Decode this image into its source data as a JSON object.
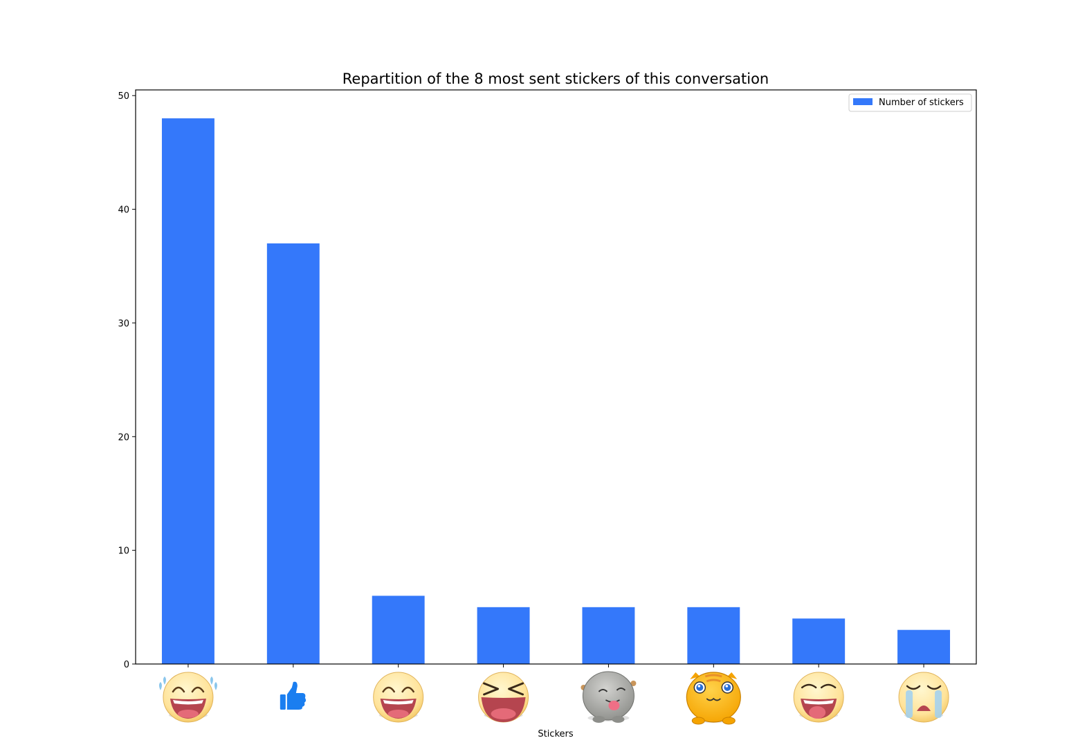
{
  "chart_data": {
    "type": "bar",
    "title": "Repartition of the 8 most sent stickers of this conversation",
    "xlabel": "Stickers",
    "ylabel": "",
    "ylim": [
      0,
      50.5
    ],
    "yticks": [
      "0",
      "10",
      "20",
      "30",
      "40",
      "50"
    ],
    "categories": [
      "laughing-tears-sticker",
      "thumbs-up-sticker",
      "grinning-face-sticker",
      "squinting-laugh-sticker",
      "gray-blob-tongue-sticker",
      "yellow-blob-sticker",
      "tongue-out-face-sticker",
      "crying-face-sticker"
    ],
    "series": [
      {
        "name": "Number of stickers",
        "values": [
          48,
          37,
          6,
          5,
          5,
          5,
          4,
          3
        ]
      }
    ],
    "legend": "top-right",
    "grid": false,
    "colors": {
      "bar": "#3478fa",
      "axis": "#000000",
      "thumb": "#1a7ef0"
    }
  }
}
